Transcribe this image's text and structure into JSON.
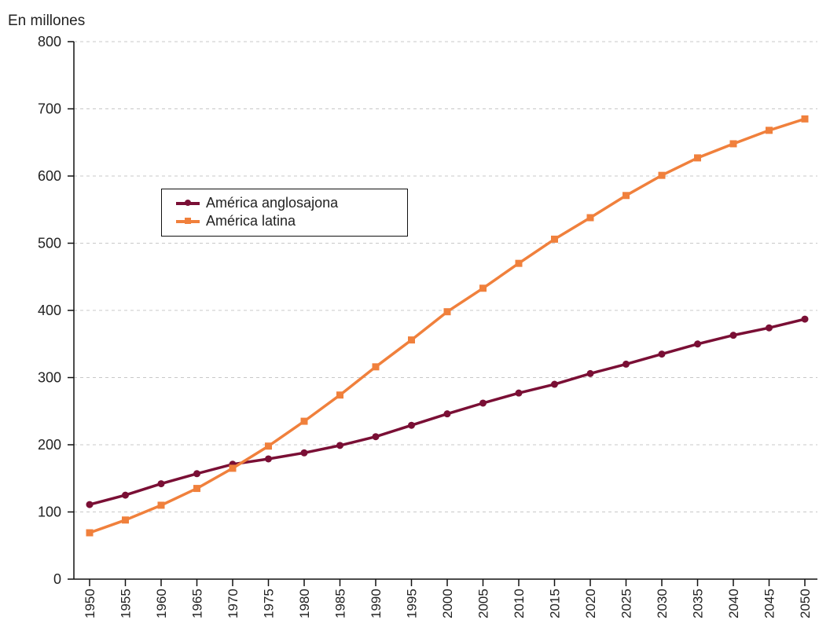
{
  "chart_data": {
    "type": "line",
    "ylabel": "En millones",
    "ylim": [
      0,
      800
    ],
    "yticks": [
      0,
      100,
      200,
      300,
      400,
      500,
      600,
      700,
      800
    ],
    "x": [
      "1950",
      "1955",
      "1960",
      "1965",
      "1970",
      "1975",
      "1980",
      "1985",
      "1990",
      "1995",
      "2000",
      "2005",
      "2010",
      "2015",
      "2020",
      "2025",
      "2030",
      "2035",
      "2040",
      "2045",
      "2050"
    ],
    "grid": "horizontal dashed",
    "legend_position": "upper-left",
    "series": [
      {
        "name": "América anglosajona",
        "color": "#7a0f35",
        "marker": "circle",
        "values": [
          111,
          125,
          142,
          157,
          171,
          179,
          188,
          199,
          212,
          229,
          246,
          262,
          277,
          290,
          306,
          320,
          335,
          350,
          363,
          374,
          387
        ]
      },
      {
        "name": "América latina",
        "color": "#f0803c",
        "marker": "square",
        "values": [
          69,
          88,
          110,
          135,
          165,
          198,
          235,
          274,
          316,
          356,
          398,
          433,
          470,
          506,
          538,
          571,
          601,
          627,
          648,
          668,
          685
        ]
      }
    ]
  }
}
